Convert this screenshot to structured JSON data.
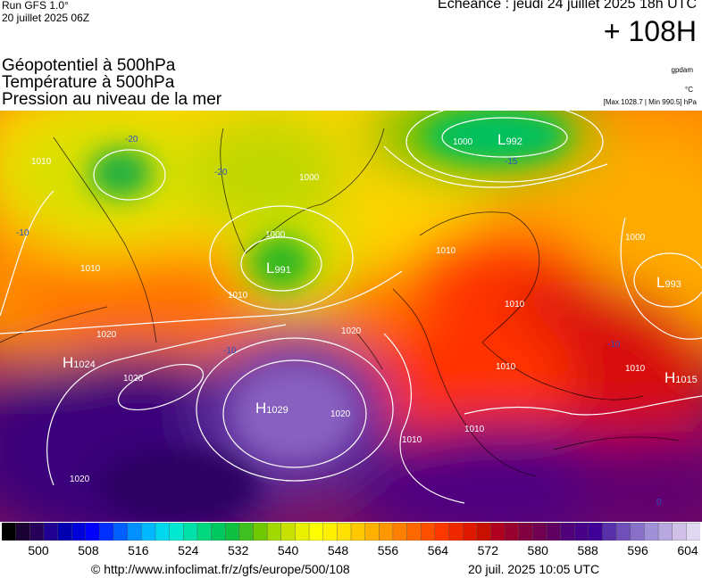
{
  "header": {
    "run_model": "Run GFS 1.0°",
    "run_date": "20 juillet 2025 06Z",
    "forecast_title": "Echéance : jeudi 24 juillet 2025 18h UTC",
    "forecast_offset": "+ 108H"
  },
  "parameters": [
    "Géopotentiel à 500hPa",
    "Température à 500hPa",
    "Pression au niveau de la mer"
  ],
  "side": {
    "source_tag": "gpdam",
    "temp_unit": "°C",
    "pressure_extrema": "[Max 1028.7 | Min 990.5] hPa"
  },
  "map": {
    "pressure_centers": [
      {
        "type": "L",
        "value": "992"
      },
      {
        "type": "L",
        "value": "991"
      },
      {
        "type": "L",
        "value": "993"
      },
      {
        "type": "H",
        "value": "1024"
      },
      {
        "type": "H",
        "value": "1029"
      },
      {
        "type": "H",
        "value": "1015"
      }
    ],
    "isobar_labels": [
      "1010",
      "1010",
      "1010",
      "1020",
      "1020",
      "1020",
      "1020",
      "1020",
      "1000",
      "1000",
      "1000",
      "1000",
      "1010",
      "1010",
      "1010",
      "1010",
      "1010",
      "1010"
    ],
    "temperature_labels": [
      "-20",
      "-20",
      "-15",
      "-10",
      "-10",
      "-10",
      "0"
    ]
  },
  "colorbar": {
    "colors": [
      "#000000",
      "#1a0033",
      "#27005a",
      "#200090",
      "#0000b0",
      "#0000d8",
      "#0000ff",
      "#0030ff",
      "#0060ff",
      "#0090ff",
      "#00b8ff",
      "#00d8f0",
      "#00e8d0",
      "#00e0a8",
      "#00d880",
      "#00c860",
      "#10c040",
      "#40c020",
      "#70c800",
      "#a0d800",
      "#c8e000",
      "#e8f000",
      "#ffff00",
      "#fff000",
      "#ffe000",
      "#ffc800",
      "#ffb000",
      "#ff9800",
      "#ff8000",
      "#ff6800",
      "#ff5000",
      "#ff3800",
      "#f02800",
      "#e01800",
      "#c81000",
      "#b00020",
      "#980030",
      "#800040",
      "#700050",
      "#600060",
      "#500078",
      "#480088",
      "#400098",
      "#5830a8",
      "#7050b8",
      "#8870c8",
      "#a090d8",
      "#b8a8e0",
      "#d0c0e8",
      "#e0d8f0"
    ],
    "labels": [
      "500",
      "508",
      "516",
      "524",
      "532",
      "540",
      "548",
      "556",
      "564",
      "572",
      "580",
      "588",
      "596",
      "604"
    ]
  },
  "footer": {
    "url": "© http://www.infoclimat.fr/z/gfs/europe/500/108",
    "generated": "20 juil. 2025 10:05 UTC"
  }
}
